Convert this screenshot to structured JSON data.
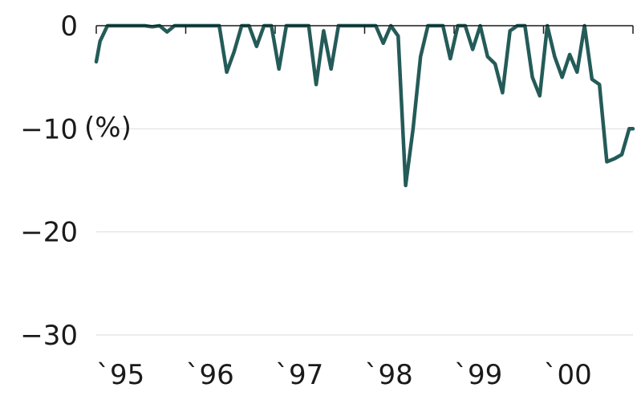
{
  "chart_data": {
    "type": "line",
    "title": "",
    "xlabel": "",
    "ylabel": "",
    "unit_label": "(%)",
    "x_tick_labels": [
      "`95",
      "`96",
      "`97",
      "`98",
      "`99",
      "`00"
    ],
    "y_ticks": [
      {
        "value": 0,
        "label": "0"
      },
      {
        "value": -10,
        "label": "−10"
      },
      {
        "value": -20,
        "label": "−20"
      },
      {
        "value": -30,
        "label": "−30"
      }
    ],
    "ylim": [
      -30,
      0
    ],
    "xlim": [
      1995.0,
      2001.0
    ],
    "grid": true,
    "legend": "none",
    "color": "#245b58",
    "series": [
      {
        "x": [
          1995.0,
          1995.042,
          1995.125,
          1995.208,
          1995.292,
          1995.375,
          1995.458,
          1995.542,
          1995.625,
          1995.708,
          1995.792,
          1995.875,
          1995.958,
          1996.042,
          1996.125,
          1996.208,
          1996.292,
          1996.375,
          1996.458,
          1996.542,
          1996.625,
          1996.708,
          1996.792,
          1996.875,
          1996.958,
          1997.042,
          1997.125,
          1997.208,
          1997.292,
          1997.375,
          1997.458,
          1997.542,
          1997.625,
          1997.708,
          1997.792,
          1997.875,
          1997.958,
          1998.042,
          1998.125,
          1998.208,
          1998.292,
          1998.375,
          1998.458,
          1998.542,
          1998.625,
          1998.708,
          1998.792,
          1998.875,
          1998.958,
          1999.042,
          1999.125,
          1999.208,
          1999.292,
          1999.375,
          1999.458,
          1999.542,
          1999.625,
          1999.708,
          1999.792,
          1999.875,
          1999.958,
          2000.042,
          2000.125,
          2000.208,
          2000.292,
          2000.375,
          2000.458,
          2000.542,
          2000.625,
          2000.708,
          2000.792,
          2000.875,
          2000.958,
          2001.0
        ],
        "y": [
          -3.5,
          -1.5,
          0,
          0,
          0,
          0,
          0,
          0,
          -0.1,
          0,
          -0.6,
          0,
          0,
          0,
          0,
          0,
          0,
          0,
          -4.5,
          -2.5,
          0,
          0,
          -2.0,
          0,
          0,
          -4.2,
          0,
          0,
          0,
          0,
          -5.7,
          -0.5,
          -4.2,
          0,
          0,
          0,
          0,
          0,
          0,
          -1.7,
          0,
          -1.0,
          -15.5,
          -10.0,
          -3.0,
          0,
          0,
          0,
          -3.2,
          0,
          0,
          -2.3,
          0,
          -3.0,
          -3.7,
          -6.5,
          -0.5,
          0,
          0,
          -5.0,
          -6.8,
          0,
          -3.0,
          -5.0,
          -2.8,
          -4.5,
          0,
          -5.2,
          -5.7,
          -13.2,
          -12.9,
          -12.5,
          -10.0,
          -10.0
        ]
      }
    ]
  }
}
